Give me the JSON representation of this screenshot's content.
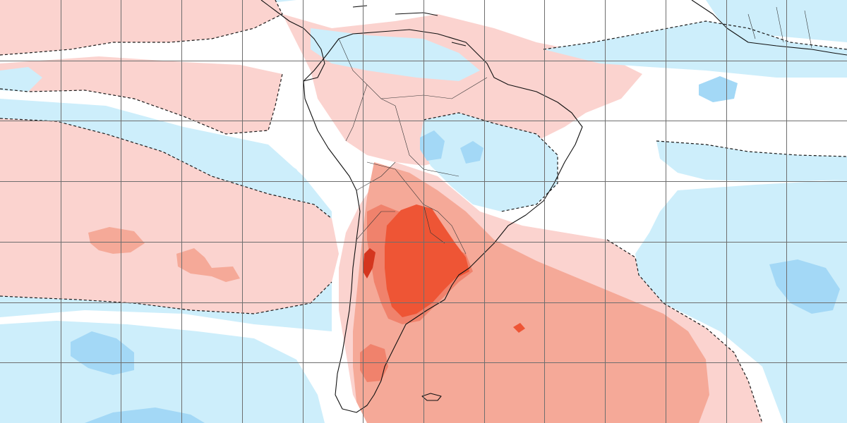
{
  "map": {
    "kind": "temperature-anomaly",
    "region": "South America",
    "palette": {
      "ocean_base": "#cdeefb",
      "neutral": "#ffffff",
      "cool_weak": "#cdeefb",
      "cool_moderate": "#a3d8f6",
      "warm_weak": "#fbd3cf",
      "warm_moderate": "#f5a998",
      "warm_strong": "#f0826c",
      "warm_very_strong": "#ee5535",
      "warm_extreme": "#d4361f",
      "contour": "#1a1a1a",
      "coastline": "#111111",
      "borders": "#333333",
      "gridlines": "#6e6e6e"
    },
    "contours": "dashed",
    "gridlines": true,
    "grid": {
      "columns": 14,
      "rows": 7
    }
  }
}
